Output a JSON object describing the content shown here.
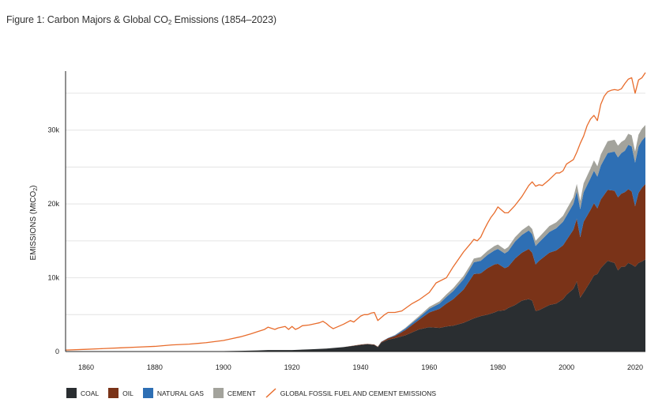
{
  "figure": {
    "title_main": "Figure 1: Carbon Majors & Global CO",
    "title_sub": "2",
    "title_tail": " Emissions (1854–2023)"
  },
  "chart_data": {
    "type": "area",
    "title": "Figure 1: Carbon Majors & Global CO2 Emissions (1854–2023)",
    "ylabel_main": "EMISSIONS (MtCO",
    "ylabel_sub": "2",
    "ylabel_tail": ")",
    "xlim": [
      1854,
      2023
    ],
    "ylim": [
      0,
      38000
    ],
    "x_ticks": [
      1860,
      1880,
      1900,
      1920,
      1940,
      1960,
      1980,
      2000,
      2020
    ],
    "y_ticks": [
      {
        "value": 0,
        "label": "0"
      },
      {
        "value": 10000,
        "label": "10k"
      },
      {
        "value": 20000,
        "label": "20k"
      },
      {
        "value": 30000,
        "label": "30k"
      }
    ],
    "gridlines": [
      5000,
      10000,
      15000,
      20000,
      25000,
      30000,
      35000
    ],
    "stacked": true,
    "x": [
      1854,
      1870,
      1880,
      1890,
      1900,
      1905,
      1910,
      1913,
      1920,
      1925,
      1930,
      1935,
      1940,
      1942,
      1944,
      1945,
      1946,
      1948,
      1950,
      1953,
      1955,
      1957,
      1960,
      1963,
      1965,
      1967,
      1970,
      1972,
      1973,
      1975,
      1977,
      1979,
      1980,
      1982,
      1983,
      1985,
      1987,
      1989,
      1990,
      1991,
      1992,
      1995,
      1997,
      1999,
      2000,
      2002,
      2003,
      2004,
      2005,
      2007,
      2008,
      2009,
      2010,
      2012,
      2014,
      2015,
      2016,
      2017,
      2018,
      2019,
      2020,
      2021,
      2022,
      2023
    ],
    "series": [
      {
        "name": "COAL",
        "color": "#2a2e31",
        "values": [
          0,
          0,
          0,
          0,
          50,
          100,
          150,
          200,
          200,
          300,
          400,
          600,
          900,
          1000,
          900,
          600,
          1200,
          1600,
          1800,
          2200,
          2600,
          3000,
          3300,
          3200,
          3400,
          3500,
          3900,
          4300,
          4500,
          4800,
          5000,
          5300,
          5500,
          5600,
          5900,
          6300,
          6900,
          7100,
          6900,
          5500,
          5600,
          6300,
          6500,
          7100,
          7700,
          8500,
          9500,
          7300,
          8000,
          9500,
          10300,
          10500,
          11300,
          12300,
          12000,
          11000,
          11500,
          11500,
          12000,
          11800,
          11500,
          12000,
          12200,
          12500
        ]
      },
      {
        "name": "OIL",
        "color": "#7a3318",
        "values": [
          0,
          0,
          0,
          0,
          0,
          0,
          0,
          0,
          0,
          0,
          0,
          0,
          50,
          50,
          50,
          50,
          100,
          200,
          300,
          700,
          1000,
          1300,
          2000,
          2600,
          3100,
          3600,
          4500,
          5500,
          6000,
          5800,
          6300,
          6500,
          6400,
          5700,
          5600,
          6300,
          6500,
          6800,
          6500,
          6300,
          6700,
          7100,
          7200,
          7300,
          7400,
          8000,
          8500,
          8200,
          9600,
          9700,
          9800,
          8900,
          9300,
          9600,
          9800,
          9900,
          9900,
          10100,
          10000,
          9900,
          8200,
          9500,
          10000,
          10200
        ]
      },
      {
        "name": "NATURAL GAS",
        "color": "#2e6fb4",
        "values": [
          0,
          0,
          0,
          0,
          0,
          0,
          0,
          0,
          0,
          0,
          0,
          0,
          0,
          0,
          0,
          0,
          20,
          50,
          100,
          200,
          250,
          300,
          500,
          700,
          900,
          1100,
          1400,
          1500,
          1600,
          1700,
          1800,
          1900,
          2000,
          2000,
          2100,
          2300,
          2400,
          2500,
          2500,
          2500,
          2500,
          2800,
          3000,
          3200,
          3300,
          3500,
          3700,
          3800,
          4000,
          4300,
          4400,
          4300,
          4600,
          5000,
          5300,
          5400,
          5500,
          5600,
          6000,
          6100,
          5900,
          6300,
          6400,
          6400
        ]
      },
      {
        "name": "CEMENT",
        "color": "#a3a39c",
        "values": [
          0,
          0,
          0,
          0,
          0,
          0,
          0,
          0,
          0,
          0,
          0,
          0,
          0,
          0,
          0,
          0,
          0,
          0,
          50,
          100,
          150,
          200,
          250,
          300,
          350,
          400,
          450,
          450,
          500,
          500,
          550,
          600,
          600,
          550,
          550,
          600,
          650,
          700,
          700,
          700,
          700,
          800,
          800,
          800,
          850,
          900,
          1000,
          1100,
          1200,
          1300,
          1400,
          1400,
          1500,
          1600,
          1600,
          1600,
          1500,
          1500,
          1500,
          1500,
          1500,
          1600,
          1600,
          1600
        ]
      }
    ],
    "line": {
      "name": "GLOBAL FOSSIL FUEL AND CEMENT EMISSIONS",
      "color": "#e86c2c",
      "x": [
        1854,
        1860,
        1865,
        1870,
        1875,
        1880,
        1885,
        1890,
        1895,
        1900,
        1902,
        1905,
        1908,
        1910,
        1912,
        1913,
        1915,
        1916,
        1918,
        1919,
        1920,
        1921,
        1922,
        1923,
        1925,
        1927,
        1928,
        1929,
        1930,
        1931,
        1932,
        1933,
        1935,
        1937,
        1938,
        1940,
        1941,
        1942,
        1943,
        1944,
        1945,
        1946,
        1947,
        1948,
        1950,
        1952,
        1955,
        1957,
        1960,
        1962,
        1965,
        1967,
        1970,
        1972,
        1973,
        1974,
        1975,
        1976,
        1977,
        1978,
        1979,
        1980,
        1981,
        1982,
        1983,
        1985,
        1987,
        1989,
        1990,
        1991,
        1992,
        1993,
        1995,
        1997,
        1998,
        1999,
        2000,
        2002,
        2003,
        2004,
        2005,
        2006,
        2007,
        2008,
        2009,
        2010,
        2011,
        2012,
        2013,
        2014,
        2015,
        2016,
        2017,
        2018,
        2019,
        2020,
        2021,
        2022,
        2023
      ],
      "values": [
        200,
        300,
        400,
        500,
        600,
        700,
        900,
        1000,
        1200,
        1500,
        1700,
        2000,
        2400,
        2700,
        3000,
        3300,
        3000,
        3200,
        3400,
        3000,
        3400,
        3000,
        3200,
        3500,
        3600,
        3800,
        3900,
        4100,
        3800,
        3400,
        3100,
        3300,
        3700,
        4200,
        4000,
        4800,
        5000,
        5000,
        5200,
        5300,
        4200,
        4600,
        5000,
        5300,
        5300,
        5500,
        6500,
        7000,
        8000,
        9300,
        10000,
        11500,
        13500,
        14600,
        15200,
        15000,
        15500,
        16500,
        17400,
        18200,
        18800,
        19600,
        19200,
        18800,
        18800,
        19800,
        21000,
        22500,
        23000,
        22400,
        22600,
        22500,
        23300,
        24200,
        24200,
        24500,
        25400,
        26000,
        27000,
        28200,
        29200,
        30600,
        31500,
        32000,
        31300,
        33500,
        34600,
        35200,
        35400,
        35500,
        35400,
        35600,
        36300,
        36900,
        37100,
        35000,
        36800,
        37100,
        37800
      ]
    },
    "legend_position": "bottom"
  },
  "legend": {
    "items": [
      {
        "label": "COAL",
        "color": "#2a2e31"
      },
      {
        "label": "OIL",
        "color": "#7a3318"
      },
      {
        "label": "NATURAL GAS",
        "color": "#2e6fb4"
      },
      {
        "label": "CEMENT",
        "color": "#a3a39c"
      }
    ],
    "line_label": "GLOBAL FOSSIL FUEL AND CEMENT EMISSIONS",
    "line_color": "#e86c2c"
  }
}
